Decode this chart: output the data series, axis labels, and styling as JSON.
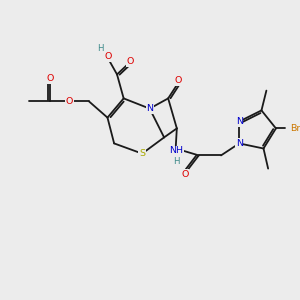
{
  "bg_color": "#ececec",
  "bond_color": "#1a1a1a",
  "bond_lw": 1.3,
  "atom_colors": {
    "O": "#dd0000",
    "N": "#0000cc",
    "S": "#aaaa00",
    "Br": "#cc7700",
    "H": "#3a8888",
    "C": "#1a1a1a"
  },
  "fs": 6.8,
  "fs_small": 6.2
}
